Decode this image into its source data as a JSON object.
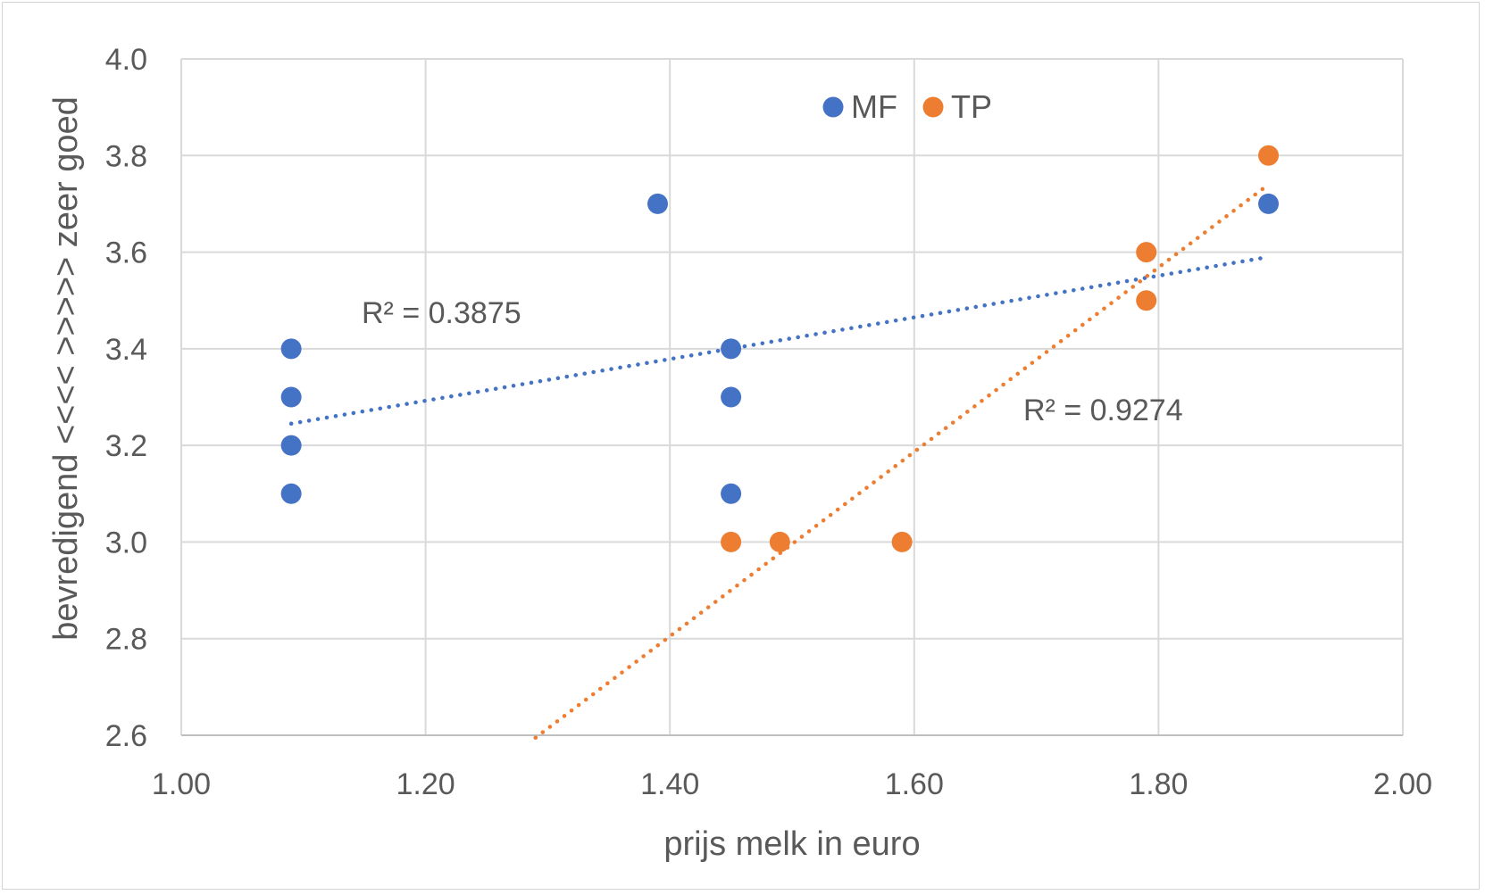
{
  "chart_data": {
    "type": "scatter",
    "title": "",
    "xlabel": "prijs melk in euro",
    "ylabel": "bevredigend <<<<  >>>>> zeer goed",
    "xlim": [
      1.0,
      2.0
    ],
    "ylim": [
      2.6,
      4.0
    ],
    "x_ticks": [
      "1.00",
      "1.20",
      "1.40",
      "1.60",
      "1.80",
      "2.00"
    ],
    "y_ticks": [
      "2.6",
      "2.8",
      "3.0",
      "3.2",
      "3.4",
      "3.6",
      "3.8",
      "4.0"
    ],
    "grid": true,
    "legend_position": "top-center",
    "series": [
      {
        "name": "MF",
        "color": "#4472C4",
        "points": [
          {
            "x": 1.09,
            "y": 3.4
          },
          {
            "x": 1.09,
            "y": 3.3
          },
          {
            "x": 1.09,
            "y": 3.2
          },
          {
            "x": 1.09,
            "y": 3.1
          },
          {
            "x": 1.39,
            "y": 3.7
          },
          {
            "x": 1.45,
            "y": 3.4
          },
          {
            "x": 1.45,
            "y": 3.3
          },
          {
            "x": 1.45,
            "y": 3.1
          },
          {
            "x": 1.89,
            "y": 3.7
          }
        ],
        "trendline": {
          "x": [
            1.09,
            1.89
          ],
          "y": [
            3.245,
            3.59
          ]
        },
        "r2_label": "R² = 0.3875"
      },
      {
        "name": "TP",
        "color": "#ED7D31",
        "points": [
          {
            "x": 1.45,
            "y": 3.0
          },
          {
            "x": 1.49,
            "y": 3.0
          },
          {
            "x": 1.59,
            "y": 3.0
          },
          {
            "x": 1.79,
            "y": 3.6
          },
          {
            "x": 1.79,
            "y": 3.5
          },
          {
            "x": 1.89,
            "y": 3.8
          }
        ],
        "trendline": {
          "x": [
            1.29,
            1.89
          ],
          "y": [
            2.595,
            3.74
          ]
        },
        "r2_label": "R² = 0.9274"
      }
    ]
  }
}
